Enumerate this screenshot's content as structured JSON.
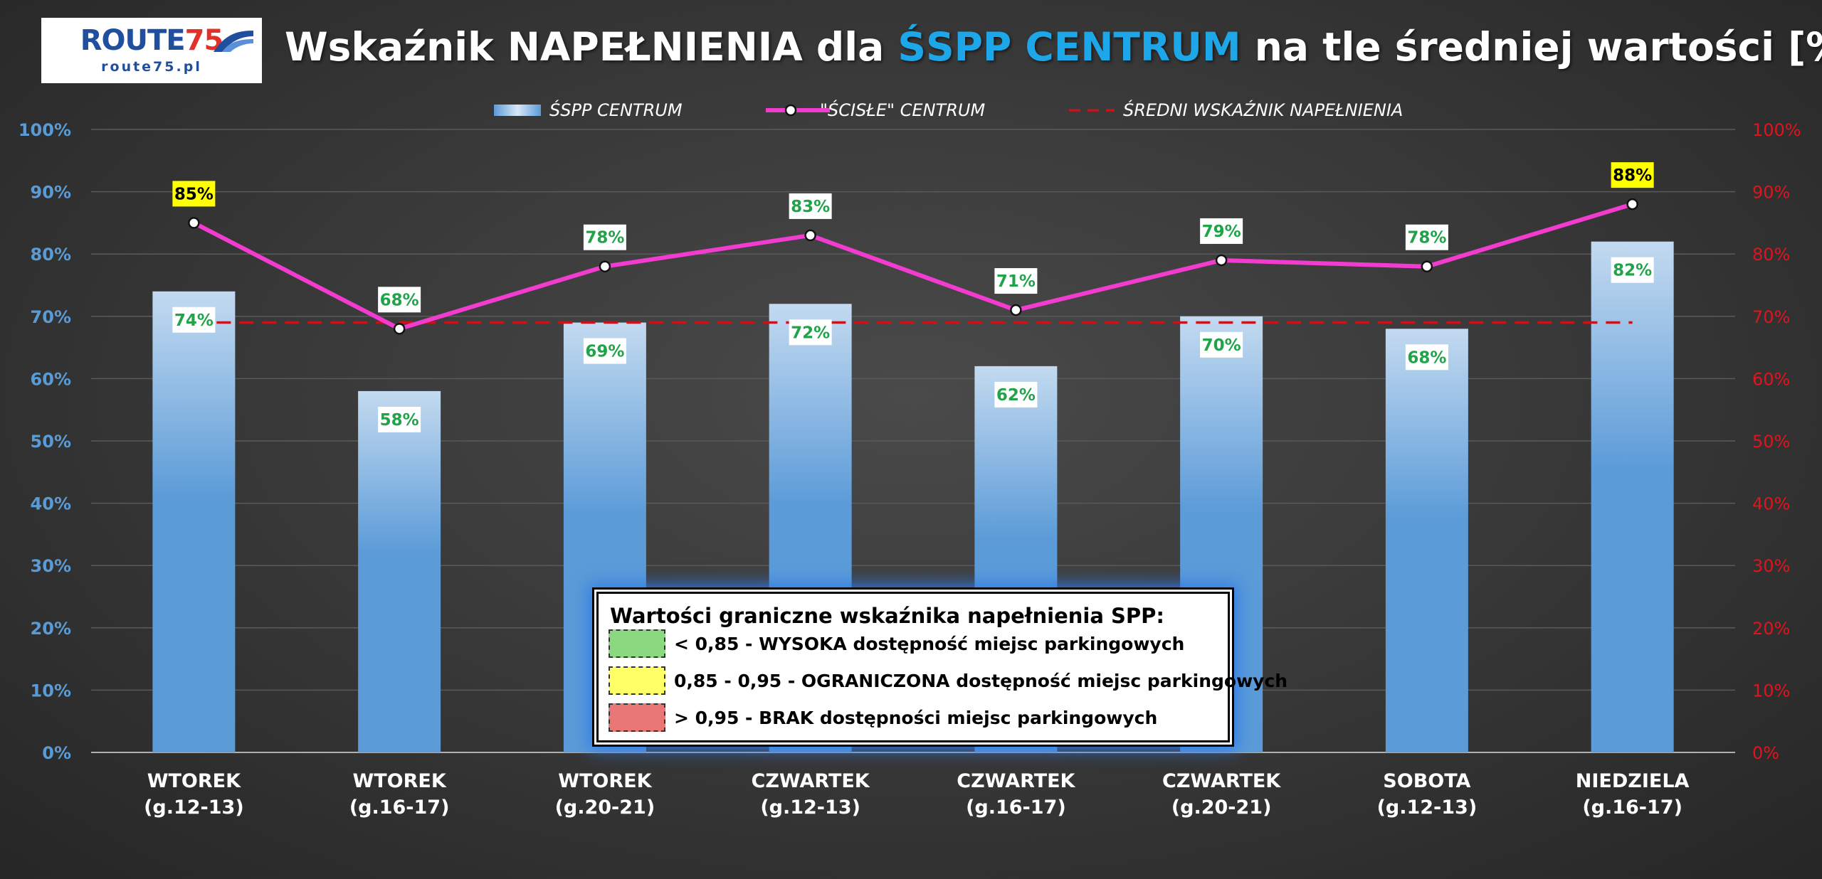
{
  "logo": {
    "word": "ROUTE",
    "number": "75",
    "url": "route75.pl"
  },
  "title": {
    "before": "Wskaźnik NAPEŁNIENIA dla ",
    "highlight": "ŚSPP CENTRUM",
    "after": " na tle średniej wartości [%]"
  },
  "colors": {
    "bar_top": "#c3daf0",
    "bar_bottom": "#5b9bd8",
    "line": "#f23cd0",
    "average": "#c8121c",
    "left_axis": "#5b9bd5",
    "right_axis": "#e0141c",
    "label_green": "#21a34a",
    "label_yellow_bg": "#ffff00"
  },
  "chart_data": {
    "type": "bar",
    "title": "Wskaźnik NAPEŁNIENIA dla ŚSPP CENTRUM na tle średniej wartości [%]",
    "categories": [
      [
        "WTOREK",
        "(g.12-13)"
      ],
      [
        "WTOREK",
        "(g.16-17)"
      ],
      [
        "WTOREK",
        "(g.20-21)"
      ],
      [
        "CZWARTEK",
        "(g.12-13)"
      ],
      [
        "CZWARTEK",
        "(g.16-17)"
      ],
      [
        "CZWARTEK",
        "(g.20-21)"
      ],
      [
        "SOBOTA",
        "(g.12-13)"
      ],
      [
        "NIEDZIELA",
        "(g.16-17)"
      ]
    ],
    "series": [
      {
        "name": "ŚSPP CENTRUM",
        "kind": "bar",
        "values": [
          74,
          58,
          69,
          72,
          62,
          70,
          68,
          82
        ],
        "labels": [
          "74%",
          "58%",
          "69%",
          "72%",
          "62%",
          "70%",
          "68%",
          "82%"
        ]
      },
      {
        "name": "\"ŚCISŁE\" CENTRUM",
        "kind": "line",
        "values": [
          85,
          68,
          78,
          83,
          71,
          79,
          78,
          88
        ],
        "labels": [
          "85%",
          "68%",
          "78%",
          "83%",
          "71%",
          "79%",
          "78%",
          "88%"
        ],
        "highlighted": [
          true,
          false,
          false,
          false,
          false,
          false,
          false,
          true
        ]
      },
      {
        "name": "ŚREDNI WSKAŹNIK NAPEŁNIENIA",
        "kind": "dashed-line",
        "value": 69
      }
    ],
    "ylim": [
      0,
      100
    ],
    "yticks": [
      "0%",
      "10%",
      "20%",
      "30%",
      "40%",
      "50%",
      "60%",
      "70%",
      "80%",
      "90%",
      "100%"
    ],
    "secondary_ylim": [
      0,
      100
    ],
    "grid": true,
    "legend_position": "top-center"
  },
  "threshold_legend": {
    "title": "Wartości graniczne wskaźnika napełnienia SPP:",
    "items": [
      {
        "color": "#8ad87f",
        "text": "< 0,85 - WYSOKA dostępność miejsc parkingowych"
      },
      {
        "color": "#ffff66",
        "text": "0,85 - 0,95 - OGRANICZONA dostępność miejsc parkingowych"
      },
      {
        "color": "#ea7778",
        "text": "> 0,95 - BRAK dostępności miejsc parkingowych"
      }
    ]
  }
}
